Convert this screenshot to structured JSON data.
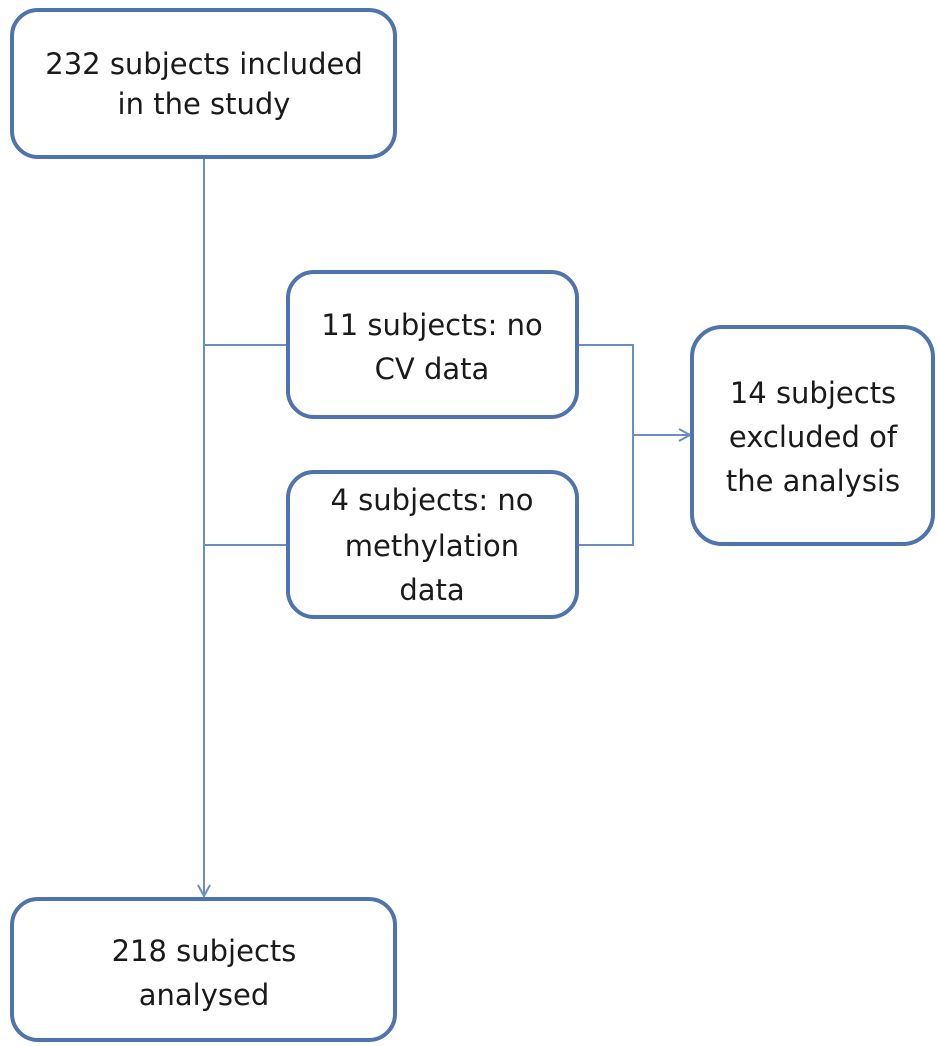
{
  "nodes": [
    {
      "lines": [
        "232 subjects included",
        "in the study"
      ]
    },
    {
      "lines": [
        "11 subjects: no",
        "CV data"
      ]
    },
    {
      "lines": [
        "4 subjects: no",
        "methylation",
        "data"
      ]
    },
    {
      "lines": [
        "14 subjects",
        "excluded of",
        "the analysis"
      ]
    },
    {
      "lines": [
        "218 subjects",
        "analysed"
      ]
    }
  ]
}
